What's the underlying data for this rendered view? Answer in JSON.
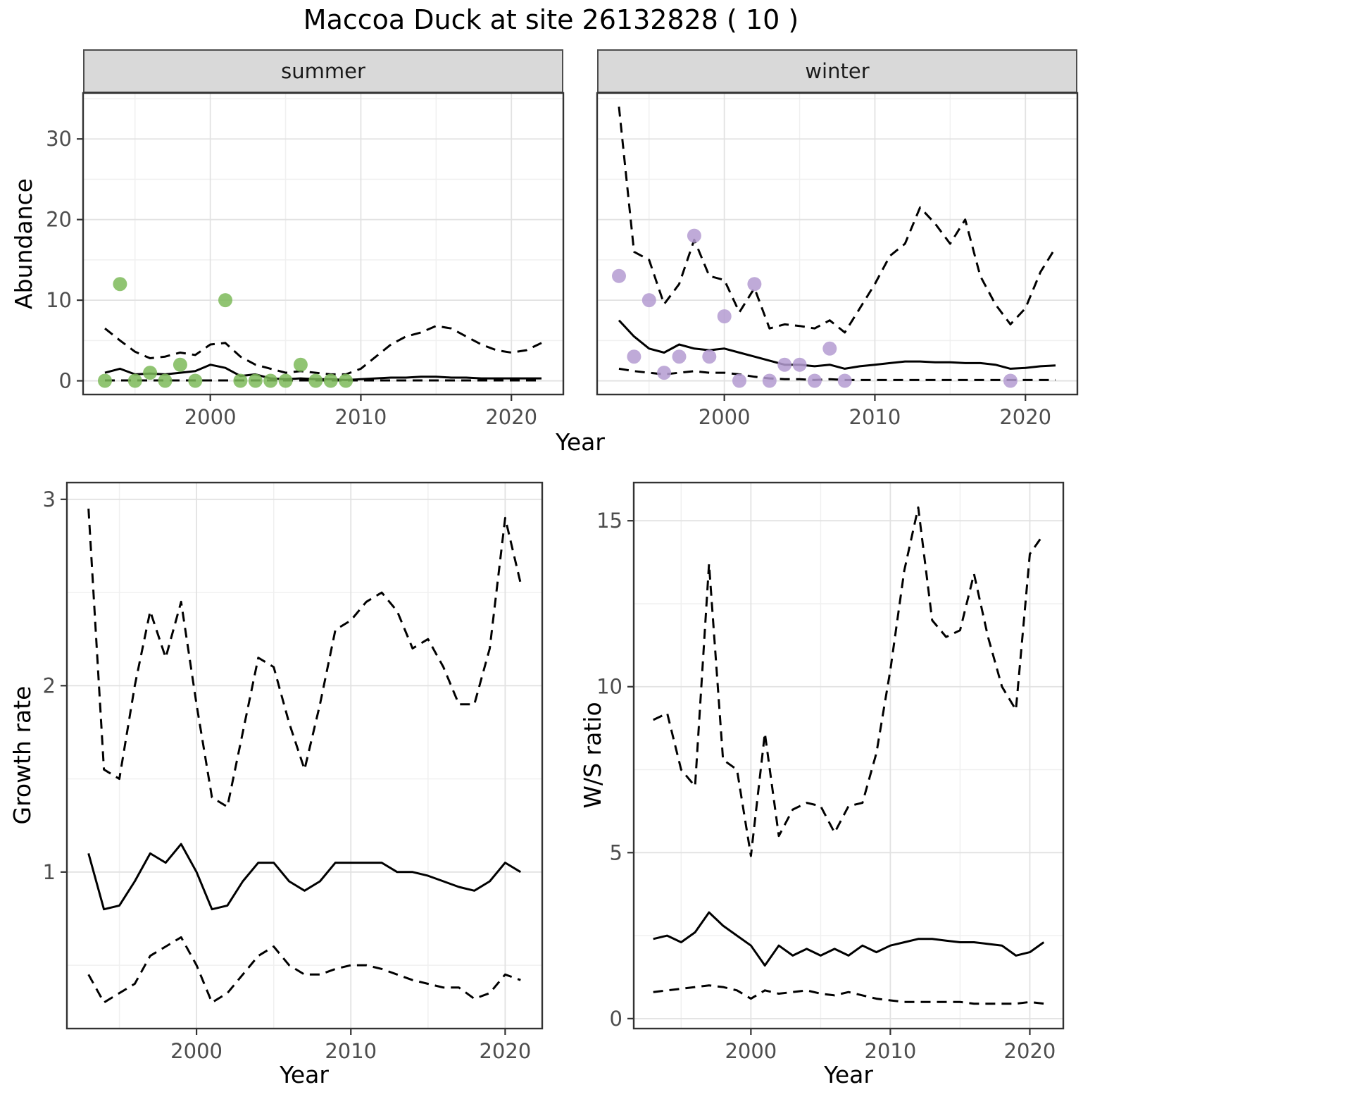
{
  "title": "Maccoa Duck at site 26132828 ( 10 )",
  "labels": {
    "abundance": "Abundance",
    "year": "Year",
    "growth_rate": "Growth rate",
    "ws_ratio": "W/S ratio"
  },
  "facets": {
    "summer": "summer",
    "winter": "winter"
  },
  "colors": {
    "summer_points": "#7CBA59",
    "winter_points": "#B49BD1",
    "line": "#000000",
    "strip_bg": "#D9D9D9",
    "strip_border": "#4D4D4D",
    "panel_border": "#333333",
    "grid_major": "#E2E2E2",
    "grid_minor": "#F0F0F0",
    "tick_text": "#4D4D4D"
  },
  "chart_data": [
    {
      "id": "abundance-summer",
      "type": "line+scatter",
      "facet_label": "summer",
      "x_label": "Year",
      "y_label": "Abundance",
      "x_range": [
        1991.55,
        2023.45
      ],
      "y_range": [
        -1.7,
        35.7
      ],
      "x_ticks": [
        2000,
        2010,
        2020
      ],
      "x_minor": [
        1995,
        2005,
        2015
      ],
      "y_ticks": [
        0,
        10,
        20,
        30
      ],
      "y_minor": [
        5,
        15,
        25,
        35
      ],
      "show_y_tick_labels": true,
      "years": [
        1993,
        1994,
        1995,
        1996,
        1997,
        1998,
        1999,
        2000,
        2001,
        2002,
        2003,
        2004,
        2005,
        2006,
        2007,
        2008,
        2009,
        2010,
        2011,
        2012,
        2013,
        2014,
        2015,
        2016,
        2017,
        2018,
        2019,
        2020,
        2021,
        2022
      ],
      "series": [
        {
          "name": "median",
          "style": "solid",
          "values": [
            1.0,
            1.5,
            0.8,
            0.9,
            0.8,
            1.0,
            1.2,
            2.0,
            1.6,
            0.6,
            0.8,
            0.3,
            0.2,
            0.3,
            0.2,
            0.2,
            0.1,
            0.2,
            0.3,
            0.4,
            0.4,
            0.5,
            0.5,
            0.4,
            0.4,
            0.3,
            0.3,
            0.3,
            0.3,
            0.3
          ]
        },
        {
          "name": "upper-ci",
          "style": "dashed",
          "values": [
            6.5,
            5.0,
            3.6,
            2.8,
            3.0,
            3.5,
            3.2,
            4.5,
            4.7,
            3.0,
            2.0,
            1.5,
            1.0,
            1.2,
            1.0,
            0.8,
            0.8,
            1.5,
            3.0,
            4.5,
            5.5,
            6.0,
            6.8,
            6.5,
            5.5,
            4.5,
            3.8,
            3.5,
            3.8,
            4.7
          ]
        },
        {
          "name": "lower-ci",
          "style": "dashed",
          "values": [
            0.05,
            0.05,
            0.05,
            0.05,
            0.05,
            0.05,
            0.05,
            0.05,
            0.05,
            0.05,
            0.05,
            0.05,
            0.05,
            0.05,
            0.05,
            0.05,
            0.05,
            0.05,
            0.05,
            0.05,
            0.05,
            0.05,
            0.05,
            0.05,
            0.05,
            0.05,
            0.05,
            0.05,
            0.05,
            0.05
          ]
        }
      ],
      "points": {
        "color_key": "summer_points",
        "data": [
          [
            1993,
            0
          ],
          [
            1994,
            12
          ],
          [
            1995,
            0
          ],
          [
            1996,
            1
          ],
          [
            1997,
            0
          ],
          [
            1998,
            2
          ],
          [
            1999,
            0
          ],
          [
            2001,
            10
          ],
          [
            2002,
            0
          ],
          [
            2003,
            0
          ],
          [
            2004,
            0
          ],
          [
            2005,
            0
          ],
          [
            2006,
            2
          ],
          [
            2007,
            0
          ],
          [
            2008,
            0
          ],
          [
            2009,
            0
          ]
        ]
      }
    },
    {
      "id": "abundance-winter",
      "type": "line+scatter",
      "facet_label": "winter",
      "x_label": "Year",
      "y_label": "Abundance",
      "x_range": [
        1991.55,
        2023.45
      ],
      "y_range": [
        -1.7,
        35.7
      ],
      "x_ticks": [
        2000,
        2010,
        2020
      ],
      "x_minor": [
        1995,
        2005,
        2015
      ],
      "y_ticks": [
        0,
        10,
        20,
        30
      ],
      "y_minor": [
        5,
        15,
        25,
        35
      ],
      "show_y_tick_labels": false,
      "years": [
        1993,
        1994,
        1995,
        1996,
        1997,
        1998,
        1999,
        2000,
        2001,
        2002,
        2003,
        2004,
        2005,
        2006,
        2007,
        2008,
        2009,
        2010,
        2011,
        2012,
        2013,
        2014,
        2015,
        2016,
        2017,
        2018,
        2019,
        2020,
        2021,
        2022
      ],
      "series": [
        {
          "name": "median",
          "style": "solid",
          "values": [
            7.5,
            5.5,
            4.0,
            3.5,
            4.5,
            4.0,
            3.8,
            4.0,
            3.5,
            3.0,
            2.5,
            2.0,
            2.0,
            1.8,
            2.0,
            1.5,
            1.8,
            2.0,
            2.2,
            2.4,
            2.4,
            2.3,
            2.3,
            2.2,
            2.2,
            2.0,
            1.5,
            1.6,
            1.8,
            1.9
          ]
        },
        {
          "name": "upper-ci",
          "style": "dashed",
          "values": [
            34.0,
            16.0,
            15.0,
            9.5,
            12.0,
            17.5,
            13.0,
            12.5,
            8.5,
            11.5,
            6.5,
            7.0,
            6.8,
            6.5,
            7.5,
            6.0,
            9.0,
            12.0,
            15.5,
            17.0,
            21.5,
            19.5,
            17.0,
            20.0,
            13.0,
            9.5,
            7.0,
            9.0,
            13.5,
            16.5
          ]
        },
        {
          "name": "lower-ci",
          "style": "dashed",
          "values": [
            1.5,
            1.2,
            1.0,
            0.8,
            1.0,
            1.2,
            1.0,
            1.0,
            0.8,
            0.5,
            0.3,
            0.2,
            0.2,
            0.1,
            0.2,
            0.1,
            0.1,
            0.1,
            0.1,
            0.1,
            0.1,
            0.1,
            0.1,
            0.1,
            0.1,
            0.1,
            0.1,
            0.1,
            0.1,
            0.1
          ]
        }
      ],
      "points": {
        "color_key": "winter_points",
        "data": [
          [
            1993,
            13
          ],
          [
            1994,
            3
          ],
          [
            1995,
            10
          ],
          [
            1996,
            1
          ],
          [
            1997,
            3
          ],
          [
            1998,
            18
          ],
          [
            1999,
            3
          ],
          [
            2000,
            8
          ],
          [
            2001,
            0
          ],
          [
            2002,
            12
          ],
          [
            2003,
            0
          ],
          [
            2004,
            2
          ],
          [
            2005,
            2
          ],
          [
            2006,
            0
          ],
          [
            2007,
            4
          ],
          [
            2008,
            0
          ],
          [
            2019,
            0
          ]
        ]
      }
    },
    {
      "id": "growth-rate",
      "type": "line",
      "facet_label": "",
      "x_label": "Year",
      "y_label": "Growth rate",
      "x_range": [
        1991.6,
        2022.4
      ],
      "y_range": [
        0.16,
        3.09
      ],
      "x_ticks": [
        2000,
        2010,
        2020
      ],
      "x_minor": [
        1995,
        2005,
        2015
      ],
      "y_ticks": [
        1,
        2,
        3
      ],
      "y_minor": [
        0.5,
        1.5,
        2.5
      ],
      "show_y_tick_labels": true,
      "years": [
        1993,
        1994,
        1995,
        1996,
        1997,
        1998,
        1999,
        2000,
        2001,
        2002,
        2003,
        2004,
        2005,
        2006,
        2007,
        2008,
        2009,
        2010,
        2011,
        2012,
        2013,
        2014,
        2015,
        2016,
        2017,
        2018,
        2019,
        2020,
        2021
      ],
      "series": [
        {
          "name": "median",
          "style": "solid",
          "values": [
            1.1,
            0.8,
            0.82,
            0.95,
            1.1,
            1.05,
            1.15,
            1.0,
            0.8,
            0.82,
            0.95,
            1.05,
            1.05,
            0.95,
            0.9,
            0.95,
            1.05,
            1.05,
            1.05,
            1.05,
            1.0,
            1.0,
            0.98,
            0.95,
            0.92,
            0.9,
            0.95,
            1.05,
            1.0
          ]
        },
        {
          "name": "upper-ci",
          "style": "dashed",
          "values": [
            2.95,
            1.55,
            1.5,
            2.0,
            2.4,
            2.15,
            2.45,
            1.9,
            1.4,
            1.35,
            1.75,
            2.15,
            2.1,
            1.8,
            1.55,
            1.9,
            2.3,
            2.35,
            2.45,
            2.5,
            2.4,
            2.2,
            2.25,
            2.1,
            1.9,
            1.9,
            2.2,
            2.9,
            2.55
          ]
        },
        {
          "name": "lower-ci",
          "style": "dashed",
          "values": [
            0.45,
            0.3,
            0.35,
            0.4,
            0.55,
            0.6,
            0.65,
            0.5,
            0.3,
            0.35,
            0.45,
            0.55,
            0.6,
            0.5,
            0.45,
            0.45,
            0.48,
            0.5,
            0.5,
            0.48,
            0.45,
            0.42,
            0.4,
            0.38,
            0.38,
            0.32,
            0.35,
            0.45,
            0.42
          ]
        }
      ]
    },
    {
      "id": "ws-ratio",
      "type": "line",
      "facet_label": "",
      "x_label": "Year",
      "y_label": "W/S ratio",
      "x_range": [
        1991.6,
        2022.4
      ],
      "y_range": [
        -0.3,
        16.15
      ],
      "x_ticks": [
        2000,
        2010,
        2020
      ],
      "x_minor": [
        1995,
        2005,
        2015
      ],
      "y_ticks": [
        0,
        5,
        10,
        15
      ],
      "y_minor": [
        2.5,
        7.5,
        12.5
      ],
      "show_y_tick_labels": true,
      "years": [
        1993,
        1994,
        1995,
        1996,
        1997,
        1998,
        1999,
        2000,
        2001,
        2002,
        2003,
        2004,
        2005,
        2006,
        2007,
        2008,
        2009,
        2010,
        2011,
        2012,
        2013,
        2014,
        2015,
        2016,
        2017,
        2018,
        2019,
        2020,
        2021
      ],
      "series": [
        {
          "name": "median",
          "style": "solid",
          "values": [
            2.4,
            2.5,
            2.3,
            2.6,
            3.2,
            2.8,
            2.5,
            2.2,
            1.6,
            2.2,
            1.9,
            2.1,
            1.9,
            2.1,
            1.9,
            2.2,
            2.0,
            2.2,
            2.3,
            2.4,
            2.4,
            2.35,
            2.3,
            2.3,
            2.25,
            2.2,
            1.9,
            2.0,
            2.3
          ]
        },
        {
          "name": "upper-ci",
          "style": "dashed",
          "values": [
            9.0,
            9.2,
            7.5,
            7.0,
            13.7,
            7.8,
            7.5,
            4.9,
            8.6,
            5.5,
            6.3,
            6.5,
            6.4,
            5.6,
            6.4,
            6.5,
            8.0,
            10.5,
            13.5,
            15.4,
            12.0,
            11.5,
            11.7,
            13.4,
            11.5,
            10.0,
            9.3,
            14.0,
            14.6
          ]
        },
        {
          "name": "lower-ci",
          "style": "dashed",
          "values": [
            0.8,
            0.85,
            0.9,
            0.95,
            1.0,
            0.95,
            0.85,
            0.6,
            0.85,
            0.75,
            0.8,
            0.85,
            0.75,
            0.7,
            0.8,
            0.7,
            0.6,
            0.55,
            0.5,
            0.5,
            0.5,
            0.5,
            0.5,
            0.45,
            0.45,
            0.45,
            0.45,
            0.5,
            0.45
          ]
        }
      ]
    }
  ]
}
